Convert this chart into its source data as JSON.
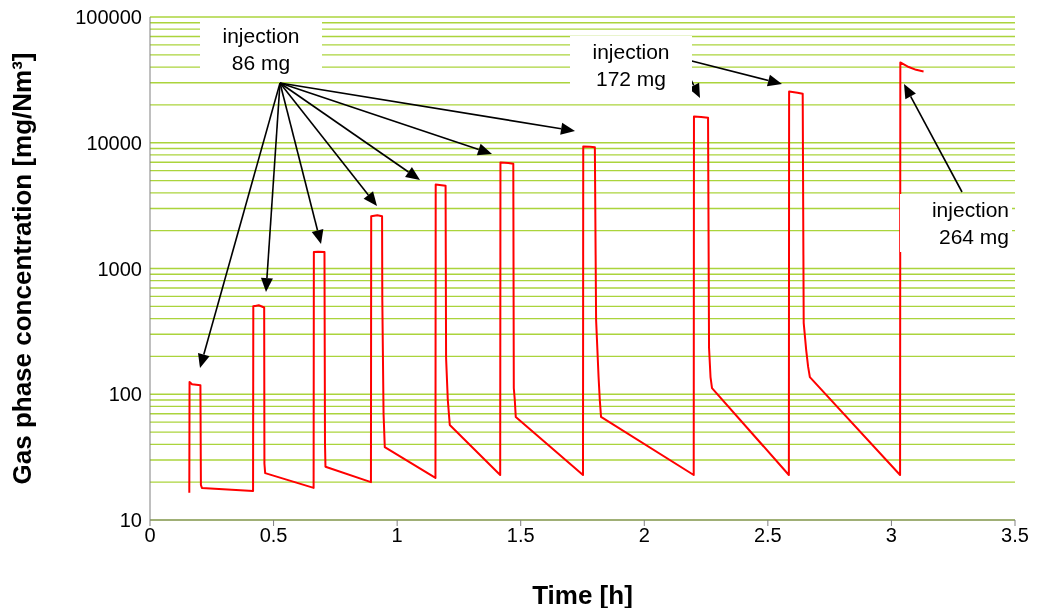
{
  "chart_data": {
    "type": "line",
    "xlabel": "Time [h]",
    "ylabel": "Gas phase concentration [mg/Nm³]",
    "log": "y",
    "grid": "y",
    "marker": "none",
    "line_style": "solid",
    "xlim": [
      0,
      3.5
    ],
    "xticks": [
      0,
      0.5,
      1,
      1.5,
      2,
      2.5,
      3,
      3.5
    ],
    "ylim": [
      10,
      100000
    ],
    "yticks": [
      10,
      {
        "value": 20,
        "label": null
      },
      {
        "value": 30,
        "label": null
      },
      {
        "value": 40,
        "label": null
      },
      {
        "value": 50,
        "label": null
      },
      {
        "value": 60,
        "label": null
      },
      {
        "value": 70,
        "label": null
      },
      {
        "value": 80,
        "label": null
      },
      {
        "value": 90,
        "label": null
      },
      100,
      {
        "value": 200,
        "label": null
      },
      {
        "value": 300,
        "label": null
      },
      {
        "value": 400,
        "label": null
      },
      {
        "value": 500,
        "label": null
      },
      {
        "value": 600,
        "label": null
      },
      {
        "value": 700,
        "label": null
      },
      {
        "value": 800,
        "label": null
      },
      {
        "value": 900,
        "label": null
      },
      1000,
      {
        "value": 2000,
        "label": null
      },
      {
        "value": 3000,
        "label": null
      },
      {
        "value": 4000,
        "label": null
      },
      {
        "value": 5000,
        "label": null
      },
      {
        "value": 6000,
        "label": null
      },
      {
        "value": 7000,
        "label": null
      },
      {
        "value": 8000,
        "label": null
      },
      {
        "value": 9000,
        "label": null
      },
      10000,
      {
        "value": 20000,
        "label": null
      },
      {
        "value": 30000,
        "label": null
      },
      {
        "value": 40000,
        "label": null
      },
      {
        "value": 50000,
        "label": null
      },
      {
        "value": 60000,
        "label": null
      },
      {
        "value": 70000,
        "label": null
      },
      {
        "value": 80000,
        "label": null
      },
      {
        "value": 90000,
        "label": null
      },
      100000
    ],
    "annotations": [
      "injection\n86 mg",
      "injection\n172 mg",
      "injection\n264 mg"
    ],
    "series": [
      {
        "color": "#ff0000",
        "x": [
          0.159,
          0.16,
          0.17,
          0.204,
          0.206,
          0.21,
          0.417,
          0.418,
          0.44,
          0.462,
          0.463,
          0.466,
          0.662,
          0.663,
          0.68,
          0.706,
          0.707,
          0.708,
          0.71,
          0.894,
          0.895,
          0.92,
          0.939,
          0.94,
          0.945,
          0.95,
          1.155,
          1.156,
          1.18,
          1.196,
          1.198,
          1.205,
          1.213,
          1.417,
          1.418,
          1.45,
          1.47,
          1.472,
          1.476,
          1.48,
          1.752,
          1.753,
          1.78,
          1.8,
          1.805,
          1.815,
          1.82,
          1.825,
          2.2,
          2.201,
          2.23,
          2.258,
          2.262,
          2.268,
          2.274,
          2.585,
          2.586,
          2.62,
          2.641,
          2.645,
          2.655,
          2.663,
          2.67,
          3.035,
          3.036,
          3.07,
          3.1,
          3.13
        ],
        "values": [
          16.5,
          125,
          120,
          118,
          19,
          18,
          17,
          500,
          510,
          490,
          28,
          23.6,
          18,
          1350,
          1360,
          1350,
          234,
          41,
          26.5,
          20,
          2600,
          2650,
          2600,
          560,
          70,
          38,
          21.6,
          4650,
          4600,
          4550,
          195,
          90,
          57,
          22.8,
          6950,
          6900,
          6800,
          112,
          90,
          66,
          22.8,
          9330,
          9300,
          9200,
          391,
          137,
          90,
          66,
          22.8,
          16200,
          16000,
          15800,
          234,
          137,
          112,
          22.8,
          25600,
          25000,
          24500,
          370,
          225,
          165,
          137,
          22.8,
          43500,
          40000,
          38000,
          36900
        ]
      }
    ]
  }
}
